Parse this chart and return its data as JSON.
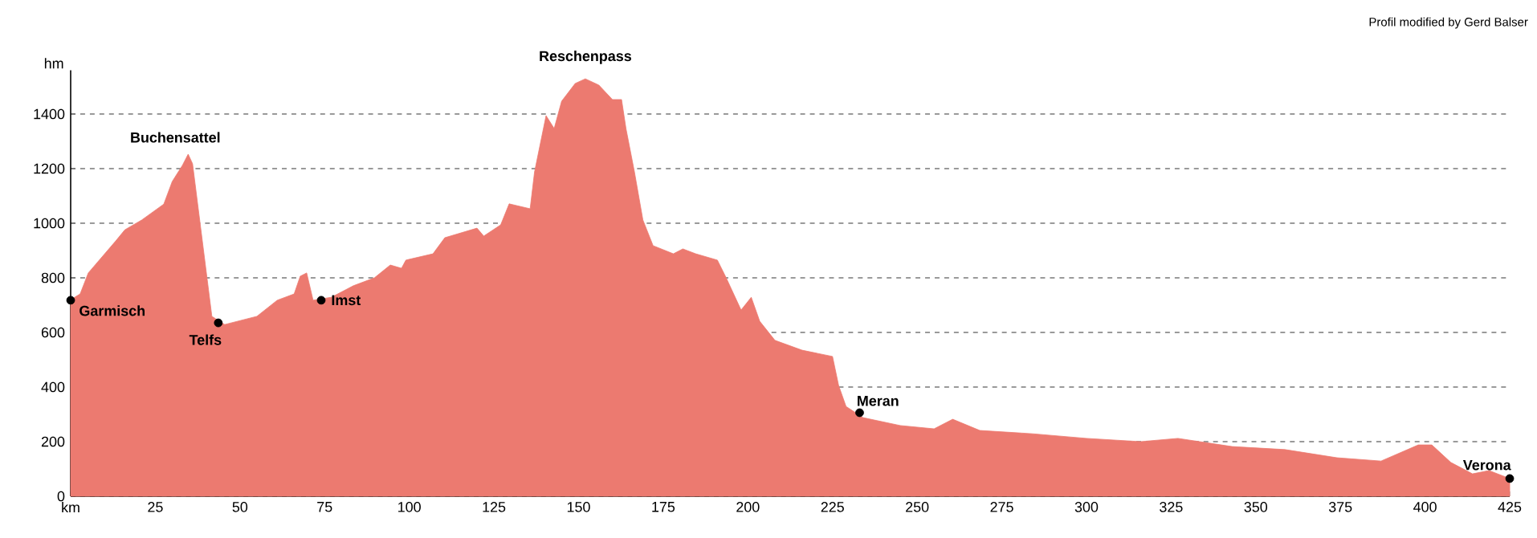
{
  "chart_data": {
    "type": "area",
    "ylabel": "hm",
    "xlim": [
      0,
      425
    ],
    "ylim": [
      0,
      1560
    ],
    "xticks": [
      {
        "value": 0,
        "label": "km"
      },
      25,
      50,
      75,
      100,
      125,
      150,
      175,
      200,
      225,
      250,
      275,
      300,
      325,
      350,
      375,
      400,
      425
    ],
    "yticks": [
      0,
      200,
      400,
      600,
      800,
      1000,
      1200,
      1400
    ],
    "grid": "y",
    "series": [
      {
        "color": "#ec7a70",
        "x": [
          0,
          2.8,
          5.2,
          13.3,
          16,
          21,
          27.5,
          30,
          33,
          34.7,
          36,
          41.7,
          45.5,
          55,
          61,
          66,
          67.8,
          69.7,
          71.6,
          77,
          83.5,
          89.7,
          94.4,
          97.7,
          99,
          107,
          110.5,
          120,
          122,
          127,
          129.5,
          135.7,
          137,
          140.4,
          142.8,
          145,
          149,
          152,
          156,
          160,
          162.7,
          164,
          166.5,
          169,
          172,
          178,
          180.8,
          184.6,
          191,
          193.6,
          198,
          201,
          203.5,
          208,
          216,
          225,
          226.8,
          229,
          234,
          245,
          255,
          260.5,
          268.5,
          284,
          300,
          316,
          327,
          343,
          358.6,
          374,
          387,
          398,
          402,
          407.6,
          414,
          418.9,
          425
        ],
        "values": [
          720,
          741,
          818,
          935,
          976,
          1012,
          1070,
          1153,
          1212,
          1253,
          1218,
          659,
          629,
          659,
          718,
          741,
          806,
          818,
          718,
          729,
          771,
          800,
          847,
          835,
          865,
          888,
          947,
          982,
          953,
          994,
          1071,
          1053,
          1188,
          1394,
          1347,
          1447,
          1512,
          1529,
          1506,
          1453,
          1453,
          1347,
          1188,
          1012,
          918,
          888,
          906,
          888,
          865,
          800,
          682,
          729,
          641,
          571,
          535,
          512,
          406,
          329,
          288,
          259,
          247,
          282,
          241,
          229,
          212,
          200,
          212,
          182,
          171,
          141,
          129,
          188,
          188,
          124,
          82,
          94,
          65
        ]
      },
      {
        "type": "scatter",
        "color": "#000000",
        "x": [
          0,
          43.6,
          74,
          233,
          425
        ],
        "values": [
          718,
          635,
          718,
          306,
          65
        ]
      }
    ],
    "annotations": [
      "Profil modified by Gerd Balser",
      {
        "text": "Buchensattel",
        "x": 34.7,
        "y": 1253
      },
      {
        "text": "Reschenpass",
        "x": 152,
        "y": 1529
      },
      {
        "text": "Garmisch",
        "x": 0,
        "y": 718
      },
      {
        "text": "Telfs",
        "x": 43.6,
        "y": 635
      },
      {
        "text": "Imst",
        "x": 74,
        "y": 718
      },
      {
        "text": "Meran",
        "x": 233,
        "y": 306
      },
      {
        "text": "Verona",
        "x": 425,
        "y": 65
      }
    ]
  }
}
